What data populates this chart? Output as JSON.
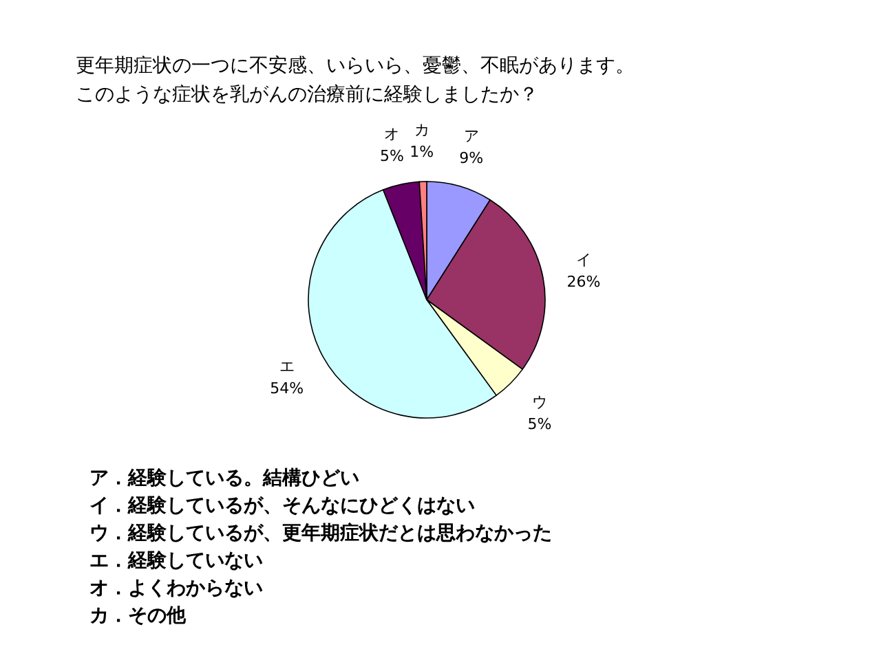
{
  "chart_data": {
    "type": "pie",
    "title": "更年期症状の一つに不安感、いらいら、憂鬱、不眠があります。",
    "subtitle": "このような症状を乳がんの治療前に経験しましたか？",
    "categories": [
      "ア",
      "イ",
      "ウ",
      "エ",
      "オ",
      "カ"
    ],
    "values": [
      9,
      26,
      5,
      54,
      5,
      1
    ],
    "colors": [
      "#9999ff",
      "#993366",
      "#ffffcc",
      "#ccffff",
      "#660066",
      "#ff8080"
    ],
    "value_labels": [
      "9%",
      "26%",
      "5%",
      "54%",
      "5%",
      "1%"
    ],
    "annotations": [
      "ア．経験している。結構ひどい",
      "イ．経験しているが、そんなにひどくはない",
      "ウ．経験しているが、更年期症状だとは思わなかった",
      "エ．経験していない",
      "オ．よくわからない",
      "カ．その他"
    ]
  }
}
